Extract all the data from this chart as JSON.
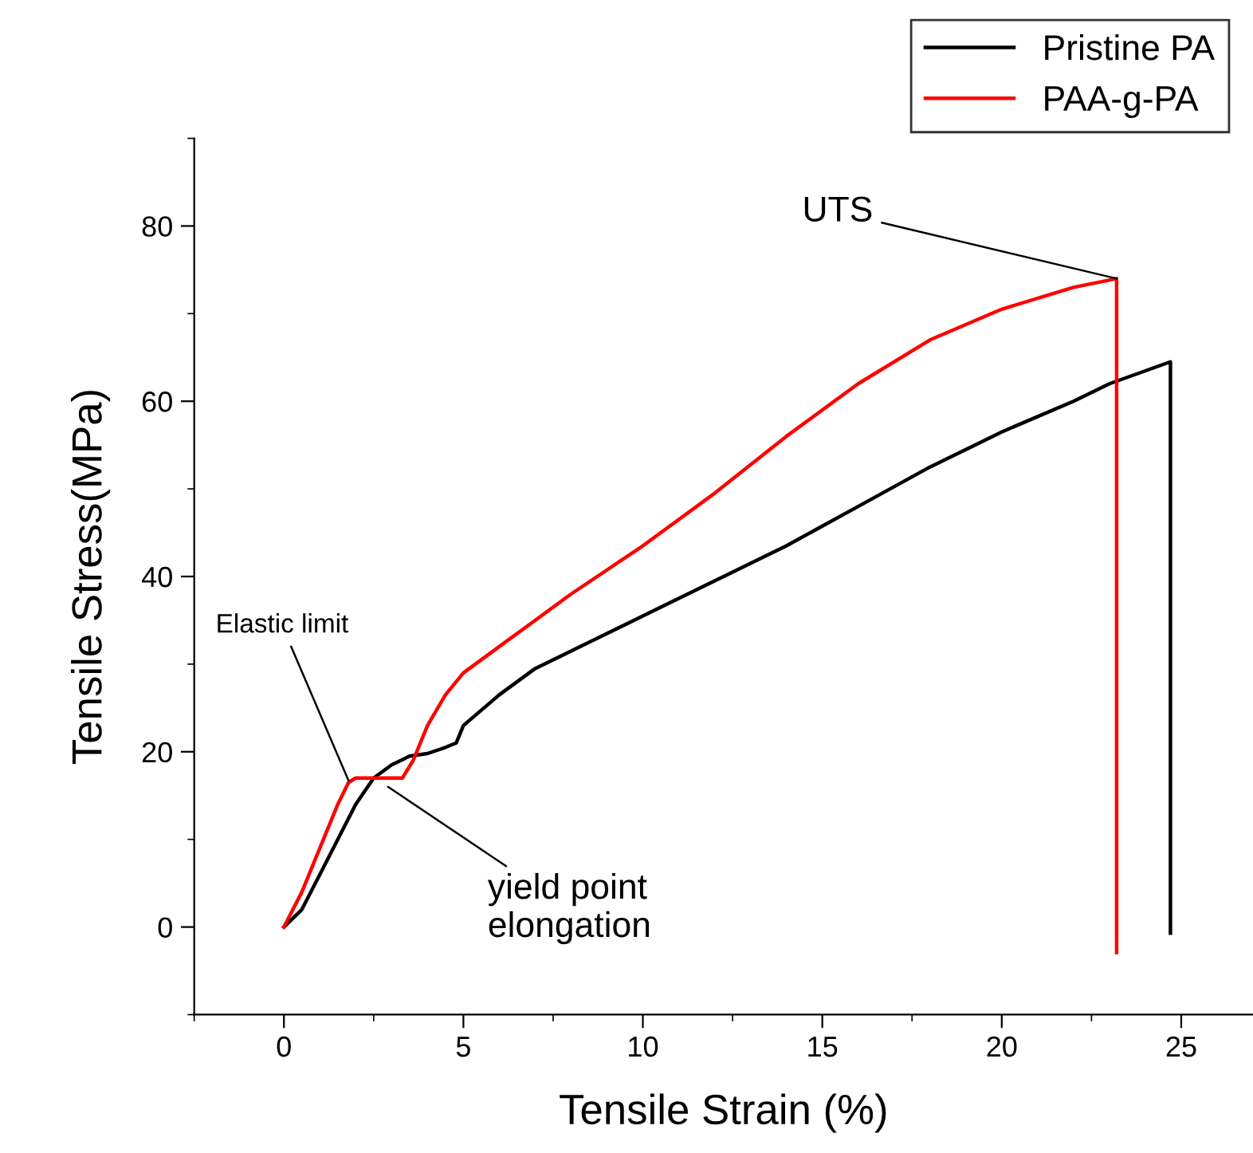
{
  "chart_data": {
    "type": "line",
    "xlabel": "Tensile Strain (%)",
    "ylabel": "Tensile Stress(MPa)",
    "xlim": [
      -2.5,
      27
    ],
    "ylim": [
      -10,
      90
    ],
    "xticks": [
      {
        "value": -2.5,
        "label": null
      },
      0,
      {
        "value": 2.5,
        "label": null
      },
      5,
      {
        "value": 7.5,
        "label": null
      },
      10,
      {
        "value": 12.5,
        "label": null
      },
      15,
      {
        "value": 17.5,
        "label": null
      },
      20,
      {
        "value": 22.5,
        "label": null
      },
      25
    ],
    "yticks": [
      {
        "value": -10,
        "label": null
      },
      0,
      {
        "value": 10,
        "label": null
      },
      20,
      {
        "value": 30,
        "label": null
      },
      40,
      {
        "value": 50,
        "label": null
      },
      60,
      {
        "value": 70,
        "label": null
      },
      80,
      {
        "value": 90,
        "label": null
      }
    ],
    "grid": false,
    "legend": "top right",
    "marker": "none",
    "line_style": "solid",
    "series": [
      {
        "name": "Pristine PA",
        "color": "#000000",
        "x": [
          0,
          0.5,
          1,
          1.5,
          2,
          2.5,
          3,
          3.5,
          4,
          4.5,
          4.8,
          5,
          6,
          7,
          8,
          10,
          12,
          14,
          16,
          18,
          20,
          22,
          23,
          24.7,
          24.7
        ],
        "values": [
          0,
          2,
          6,
          10,
          14,
          17,
          18.5,
          19.5,
          19.8,
          20.5,
          21,
          23,
          26.5,
          29.5,
          31.5,
          35.5,
          39.5,
          43.5,
          48,
          52.5,
          56.5,
          60,
          62,
          64.5,
          -0.7
        ]
      },
      {
        "name": "PAA-g-PA",
        "color": "#ff0000",
        "x": [
          0,
          0.5,
          1,
          1.5,
          1.8,
          2,
          3.3,
          3.6,
          4,
          4.5,
          5,
          6,
          7,
          8,
          10,
          12,
          14,
          16,
          18,
          20,
          22,
          23.2,
          23.2
        ],
        "values": [
          0,
          4,
          9,
          14,
          16.5,
          17,
          17,
          19,
          23,
          26.5,
          29,
          32,
          35,
          38,
          43.5,
          49.5,
          56,
          62,
          67,
          70.5,
          73,
          74,
          -2.9
        ]
      }
    ],
    "annotations": [
      {
        "text": "Elastic limit",
        "x": 1.8,
        "y": 16.7
      },
      {
        "text": "yield point\nelongation",
        "x": 2.9,
        "y": 16
      },
      {
        "text": "UTS",
        "x": 23.2,
        "y": 74
      }
    ]
  }
}
